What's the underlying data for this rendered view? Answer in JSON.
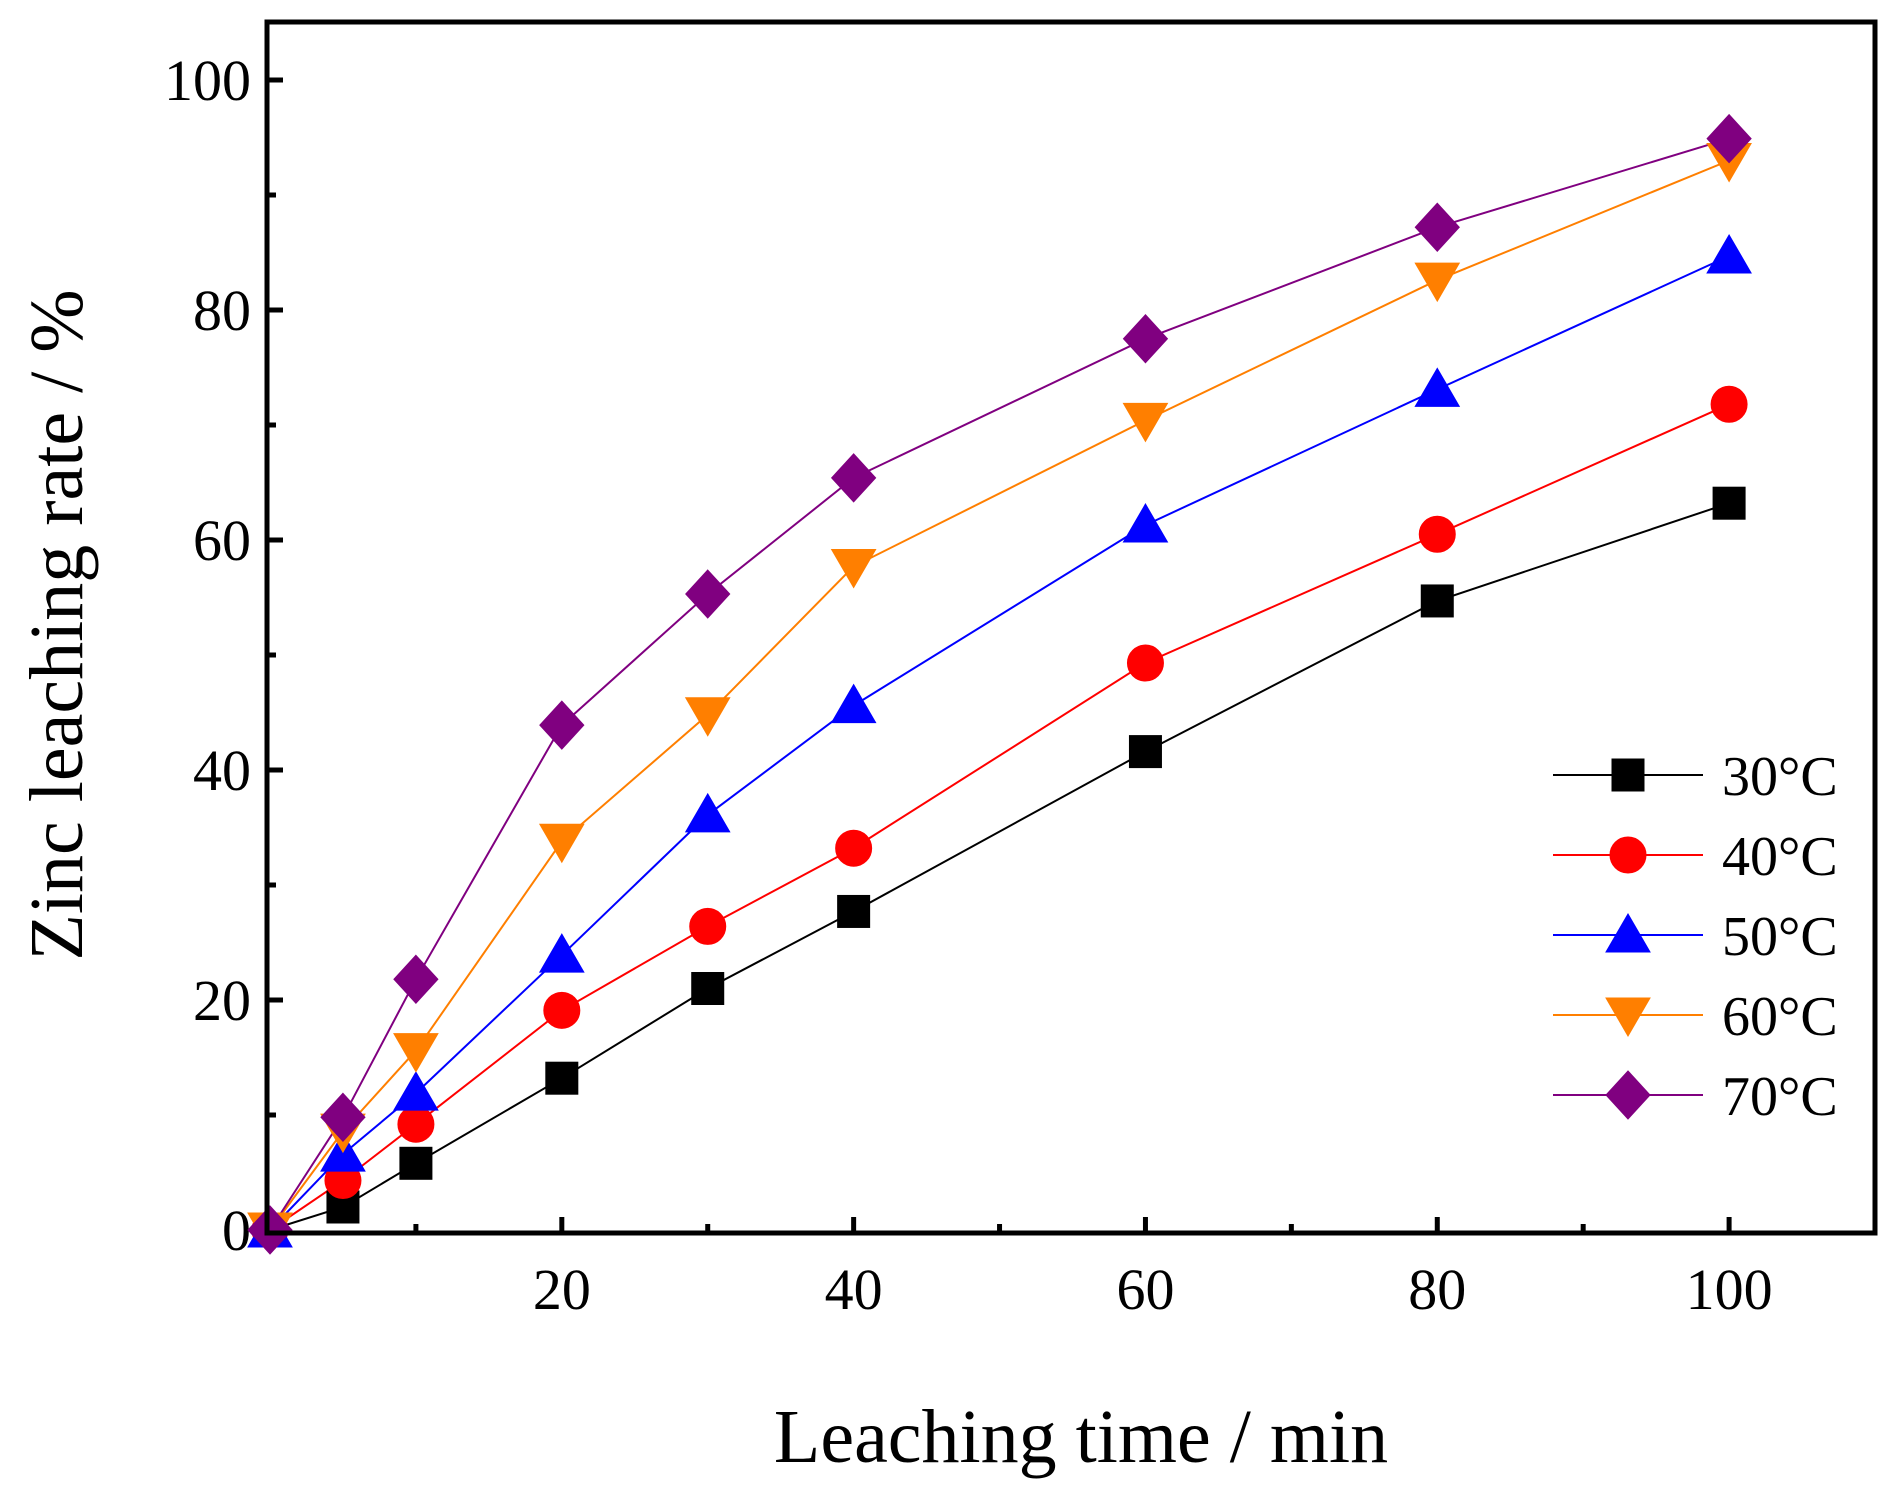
{
  "chart_data": {
    "type": "line",
    "title": "",
    "xlabel": "Leaching time / min",
    "ylabel": "Zinc leaching rate / %",
    "xlim": [
      0,
      110
    ],
    "ylim": [
      0,
      100
    ],
    "xticks": [
      20,
      40,
      60,
      80,
      100
    ],
    "yticks": [
      0,
      20,
      40,
      60,
      80,
      100
    ],
    "x_minor": [
      10,
      30,
      50,
      70,
      90
    ],
    "y_minor": [
      10,
      30,
      50,
      70,
      90
    ],
    "grid": false,
    "legend_position": "bottom-right",
    "x": [
      0,
      5,
      10,
      20,
      30,
      40,
      60,
      80,
      100
    ],
    "series": [
      {
        "name": "30°C",
        "color": "#000000",
        "marker": "square",
        "values": [
          0,
          2.0,
          5.8,
          13.2,
          21.0,
          27.7,
          41.6,
          54.7,
          63.2
        ]
      },
      {
        "name": "40°C",
        "color": "#ff0000",
        "marker": "circle",
        "values": [
          0,
          4.3,
          9.2,
          19.1,
          26.4,
          33.2,
          49.3,
          60.5,
          71.8
        ]
      },
      {
        "name": "50°C",
        "color": "#0000ff",
        "marker": "triangle-up",
        "values": [
          0,
          6.6,
          11.9,
          23.9,
          36.1,
          45.6,
          61.3,
          73.1,
          84.7
        ]
      },
      {
        "name": "60°C",
        "color": "#ff7f00",
        "marker": "triangle-down",
        "values": [
          0,
          8.6,
          15.6,
          33.8,
          44.8,
          57.7,
          70.4,
          82.6,
          93.0
        ]
      },
      {
        "name": "70°C",
        "color": "#800080",
        "marker": "diamond",
        "values": [
          0,
          9.8,
          21.8,
          43.9,
          55.3,
          65.4,
          77.5,
          87.2,
          94.9
        ]
      }
    ]
  }
}
